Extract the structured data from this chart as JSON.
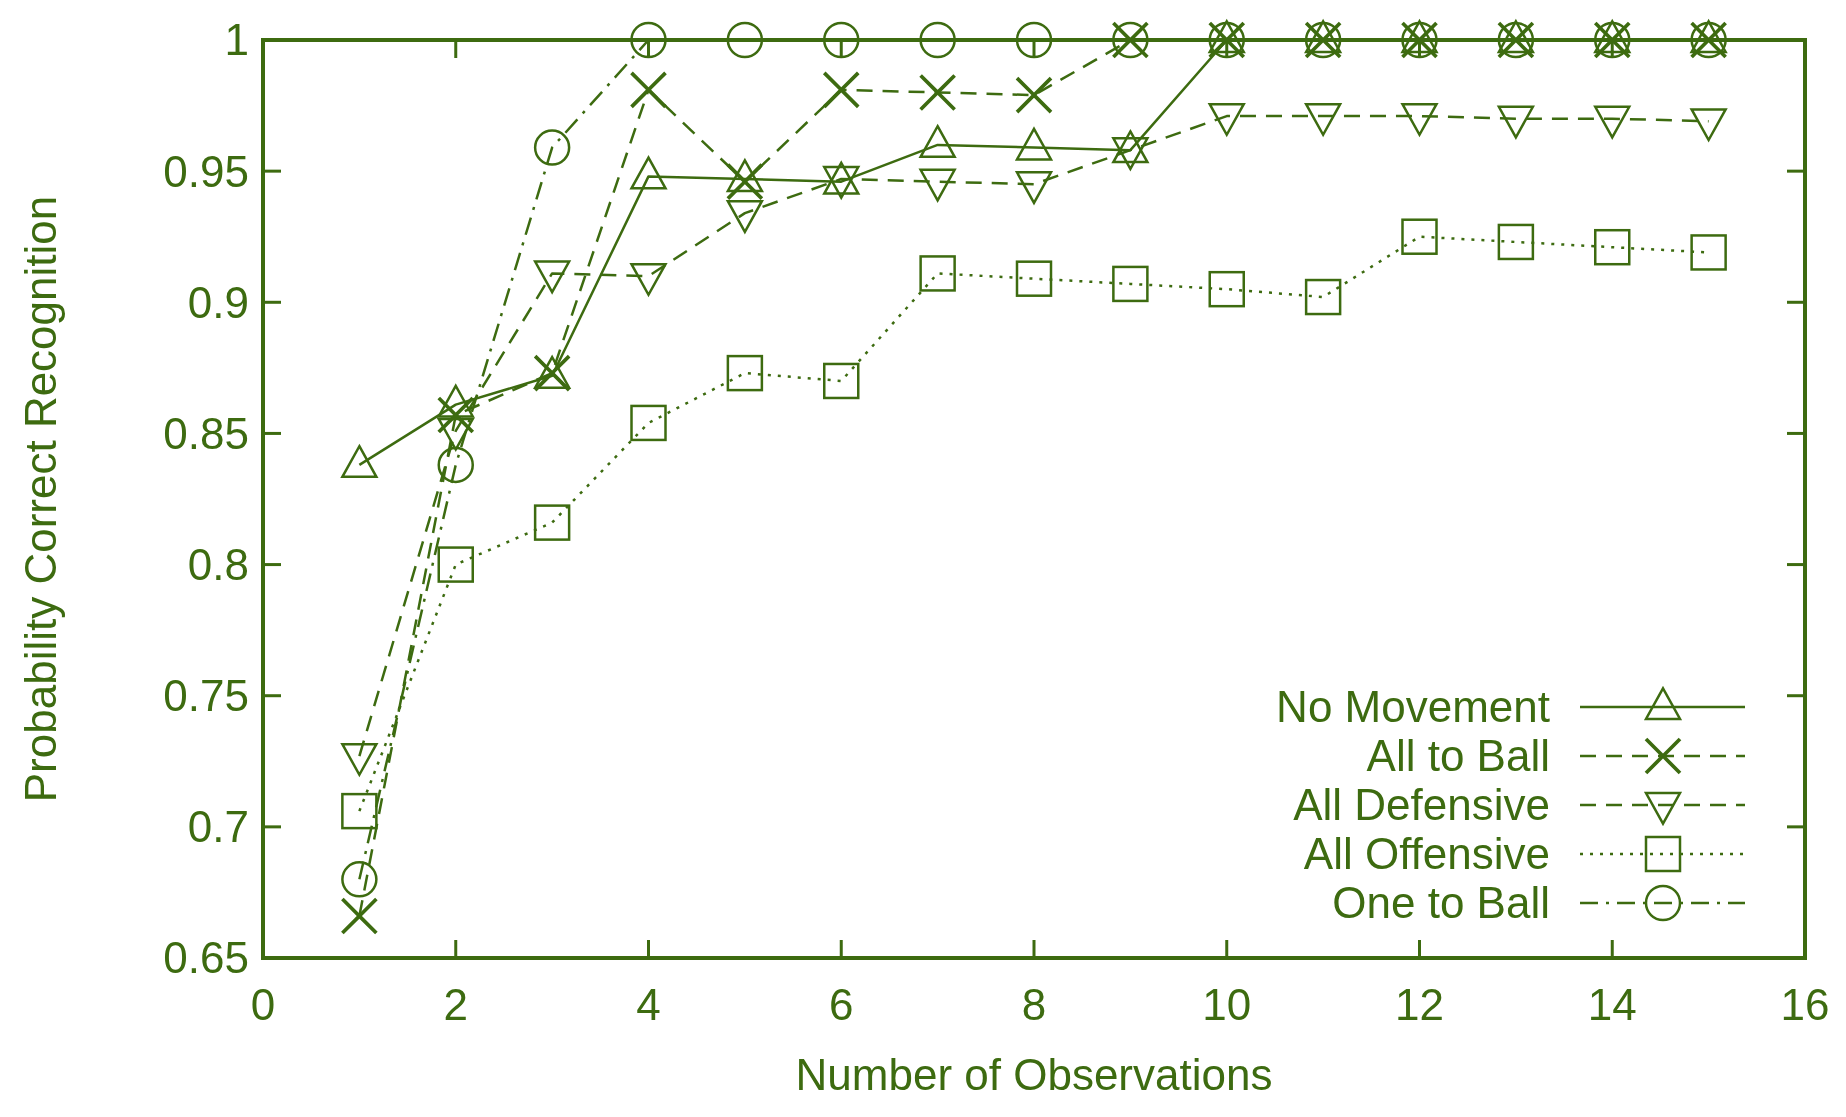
{
  "chart_data": {
    "type": "line",
    "xlabel": "Number of Observations",
    "ylabel": "Probability Correct Recognition",
    "x": [
      1,
      2,
      3,
      4,
      5,
      6,
      7,
      8,
      9,
      10,
      11,
      12,
      13,
      14,
      15
    ],
    "xlim": [
      0,
      16
    ],
    "xticks": [
      0,
      2,
      4,
      6,
      8,
      10,
      12,
      14,
      16
    ],
    "ylim": [
      0.65,
      1
    ],
    "yticks": [
      0.65,
      0.7,
      0.75,
      0.8,
      0.85,
      0.9,
      0.95,
      1
    ],
    "grid": false,
    "legend": "bottom right",
    "series": [
      {
        "name": "No Movement",
        "color": "#3d6b10",
        "marker": "triangle",
        "line_style": "solid",
        "values": [
          0.838,
          0.861,
          0.872,
          0.948,
          0.947,
          0.946,
          0.96,
          0.959,
          0.958,
          1,
          1,
          1,
          1,
          1,
          1
        ]
      },
      {
        "name": "All to Ball",
        "color": "#3d6b10",
        "marker": "cross",
        "line_style": "dashed",
        "values": [
          0.666,
          0.857,
          0.873,
          0.981,
          0.946,
          0.981,
          0.98,
          0.979,
          1,
          1,
          1,
          1,
          1,
          1,
          1
        ]
      },
      {
        "name": "All Defensive",
        "color": "#3d6b10",
        "marker": "triangle-down",
        "line_style": "dashed",
        "values": [
          0.727,
          0.851,
          0.911,
          0.91,
          0.934,
          0.947,
          0.946,
          0.945,
          0.958,
          0.971,
          0.971,
          0.971,
          0.97,
          0.97,
          0.969
        ]
      },
      {
        "name": "All Offensive",
        "color": "#3d6b10",
        "marker": "square",
        "line_style": "dotted",
        "values": [
          0.706,
          0.8,
          0.816,
          0.854,
          0.873,
          0.87,
          0.911,
          0.909,
          0.907,
          0.905,
          0.902,
          0.925,
          0.923,
          0.921,
          0.919
        ]
      },
      {
        "name": "One to Ball",
        "color": "#3d6b10",
        "marker": "circle",
        "line_style": "dashdot",
        "values": [
          0.68,
          0.838,
          0.959,
          1,
          1,
          1,
          1,
          1,
          1,
          1,
          1,
          1,
          1,
          1,
          1
        ]
      }
    ]
  }
}
